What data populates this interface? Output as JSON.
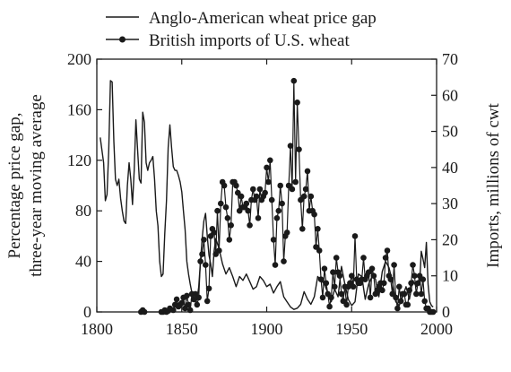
{
  "chart_data": {
    "type": "line",
    "title": "",
    "xlabel": "",
    "ylabel_left": [
      "Percentage price gap,",
      "three-year moving average"
    ],
    "ylabel_right": "Imports, millions of cwt",
    "xlim": [
      1800,
      2000
    ],
    "ylim_left": [
      0,
      200
    ],
    "ylim_right": [
      0,
      70
    ],
    "xticks": [
      "1800",
      "1850",
      "1900",
      "1950",
      "2000"
    ],
    "yticks_left": [
      "0",
      "40",
      "80",
      "120",
      "160",
      "200"
    ],
    "yticks_right": [
      "0",
      "10",
      "20",
      "30",
      "40",
      "50",
      "60",
      "70"
    ],
    "grid": false,
    "legend_position": "top",
    "series": [
      {
        "name": "Anglo-American wheat price gap",
        "axis": "left",
        "x": [
          1802,
          1804,
          1805,
          1806,
          1807,
          1808,
          1809,
          1810,
          1811,
          1812,
          1813,
          1814,
          1815,
          1816,
          1817,
          1818,
          1819,
          1820,
          1821,
          1822,
          1823,
          1824,
          1825,
          1826,
          1827,
          1828,
          1829,
          1830,
          1831,
          1832,
          1833,
          1834,
          1835,
          1836,
          1837,
          1838,
          1839,
          1840,
          1841,
          1842,
          1843,
          1844,
          1845,
          1846,
          1847,
          1848,
          1849,
          1850,
          1851,
          1852,
          1853,
          1854,
          1855,
          1856,
          1857,
          1858,
          1859,
          1860,
          1861,
          1862,
          1863,
          1864,
          1865,
          1866,
          1867,
          1868,
          1869,
          1870,
          1872,
          1874,
          1876,
          1878,
          1880,
          1882,
          1884,
          1886,
          1888,
          1890,
          1892,
          1894,
          1896,
          1898,
          1900,
          1902,
          1904,
          1906,
          1908,
          1910,
          1912,
          1914,
          1916,
          1918,
          1920,
          1922,
          1924,
          1926,
          1928,
          1930,
          1932,
          1934,
          1936,
          1938,
          1940,
          1942,
          1944,
          1946,
          1948,
          1950,
          1952,
          1954,
          1956,
          1958,
          1960,
          1962,
          1964,
          1966,
          1968,
          1970,
          1972,
          1974,
          1976,
          1978,
          1980,
          1982,
          1984,
          1986,
          1988,
          1990,
          1991,
          1992,
          1993,
          1994,
          1995,
          1996,
          1997,
          1998
        ],
        "values": [
          138,
          118,
          88,
          93,
          128,
          183,
          182,
          135,
          105,
          100,
          105,
          90,
          80,
          72,
          70,
          100,
          118,
          105,
          85,
          112,
          152,
          128,
          105,
          102,
          158,
          150,
          118,
          112,
          118,
          120,
          123,
          105,
          80,
          68,
          40,
          28,
          30,
          62,
          88,
          130,
          148,
          130,
          115,
          112,
          112,
          108,
          103,
          95,
          80,
          65,
          40,
          30,
          22,
          15,
          10,
          8,
          10,
          20,
          40,
          58,
          72,
          78,
          60,
          45,
          38,
          28,
          48,
          58,
          50,
          38,
          30,
          35,
          28,
          20,
          28,
          25,
          30,
          24,
          18,
          20,
          28,
          25,
          20,
          22,
          15,
          20,
          24,
          12,
          8,
          4,
          2,
          3,
          6,
          16,
          10,
          6,
          12,
          28,
          25,
          22,
          15,
          8,
          18,
          12,
          36,
          22,
          10,
          5,
          8,
          30,
          28,
          10,
          22,
          28,
          26,
          12,
          32,
          40,
          35,
          24,
          8,
          5,
          12,
          20,
          10,
          25,
          20,
          22,
          48,
          42,
          35,
          55,
          22,
          8,
          5,
          4
        ]
      },
      {
        "name": "British imports of U.S. wheat",
        "axis": "right",
        "x": [
          1826,
          1827,
          1828,
          1838,
          1839,
          1840,
          1841,
          1842,
          1843,
          1845,
          1846,
          1847,
          1848,
          1849,
          1850,
          1851,
          1852,
          1853,
          1854,
          1855,
          1856,
          1857,
          1858,
          1859,
          1860,
          1861,
          1862,
          1863,
          1864,
          1865,
          1866,
          1867,
          1868,
          1869,
          1870,
          1871,
          1872,
          1873,
          1874,
          1875,
          1876,
          1877,
          1878,
          1879,
          1880,
          1881,
          1882,
          1883,
          1884,
          1885,
          1886,
          1887,
          1888,
          1889,
          1890,
          1891,
          1892,
          1893,
          1894,
          1895,
          1896,
          1897,
          1898,
          1899,
          1900,
          1901,
          1902,
          1903,
          1904,
          1905,
          1906,
          1907,
          1908,
          1909,
          1910,
          1911,
          1912,
          1913,
          1914,
          1915,
          1916,
          1917,
          1918,
          1919,
          1920,
          1921,
          1922,
          1923,
          1924,
          1925,
          1926,
          1927,
          1928,
          1929,
          1930,
          1931,
          1932,
          1933,
          1934,
          1935,
          1936,
          1937,
          1938,
          1939,
          1940,
          1941,
          1942,
          1943,
          1944,
          1945,
          1946,
          1947,
          1948,
          1949,
          1950,
          1951,
          1952,
          1953,
          1954,
          1955,
          1956,
          1957,
          1958,
          1959,
          1960,
          1961,
          1962,
          1963,
          1964,
          1965,
          1966,
          1967,
          1968,
          1969,
          1970,
          1971,
          1972,
          1973,
          1974,
          1975,
          1976,
          1977,
          1978,
          1979,
          1980,
          1981,
          1982,
          1983,
          1984,
          1985,
          1986,
          1987,
          1988,
          1989,
          1990,
          1991,
          1992,
          1993,
          1994,
          1995,
          1996,
          1997,
          1998
        ],
        "values": [
          0,
          0.5,
          0,
          0,
          0,
          0.5,
          0,
          0.3,
          1,
          0.5,
          2,
          3.5,
          1.5,
          2,
          2.5,
          4,
          1,
          4.5,
          2,
          0.5,
          5,
          3.5,
          5,
          2,
          4,
          14,
          16,
          20,
          13,
          3,
          6.5,
          21,
          23,
          22,
          16,
          28,
          17,
          30,
          36,
          35,
          29,
          26,
          20,
          24,
          36,
          36,
          35,
          33,
          28,
          32,
          29,
          29,
          30,
          28,
          24,
          31,
          34,
          31,
          32,
          26,
          34,
          31,
          32,
          33,
          40,
          36,
          42,
          31,
          20,
          13,
          26,
          28,
          35,
          30,
          14,
          21,
          22,
          35,
          46,
          34,
          64,
          36,
          58,
          45,
          31,
          23,
          32,
          34,
          39,
          28,
          32,
          28,
          27,
          18,
          23,
          17,
          9,
          4,
          12,
          8,
          5,
          1.5,
          4,
          11,
          7,
          15,
          11,
          10,
          5,
          3,
          7,
          2,
          7,
          8,
          10,
          7,
          21,
          9,
          8,
          8,
          9,
          15,
          9,
          10,
          11,
          4,
          12,
          10,
          5,
          6,
          7,
          8,
          6,
          8,
          15,
          17,
          10,
          9,
          5,
          13,
          4,
          1,
          7,
          3,
          5,
          5,
          2,
          2,
          6,
          8,
          13,
          10,
          5,
          8,
          10,
          5,
          9,
          3,
          1,
          1,
          0,
          0,
          0
        ]
      }
    ]
  }
}
